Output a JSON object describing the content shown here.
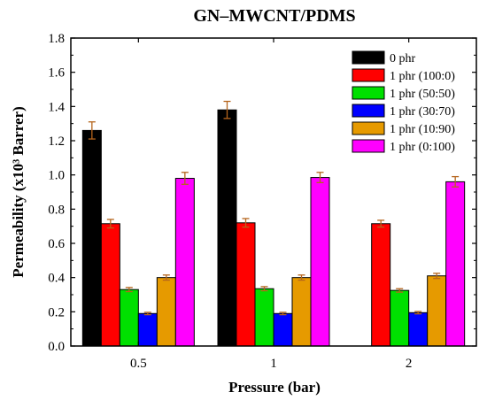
{
  "chart_data": {
    "type": "bar",
    "title": "GN–MWCNT/PDMS",
    "xlabel": "Pressure (bar)",
    "ylabel": "Permeability (x10³ Barrer)",
    "categories": [
      "0.5",
      "1",
      "2"
    ],
    "ylim": [
      0,
      1.8
    ],
    "yticks": [
      "0.0",
      "0.2",
      "0.4",
      "0.6",
      "0.8",
      "1.0",
      "1.2",
      "1.4",
      "1.6",
      "1.8"
    ],
    "legend_position": "top-right",
    "grid": false,
    "series": [
      {
        "name": "0 phr",
        "color": "#000000",
        "values": [
          1.26,
          1.38,
          null
        ],
        "errors": [
          0.05,
          0.05,
          null
        ]
      },
      {
        "name": "1 phr (100:0)",
        "color": "#ff0000",
        "values": [
          0.715,
          0.72,
          0.715
        ],
        "errors": [
          0.025,
          0.025,
          0.02
        ]
      },
      {
        "name": "1 phr (50:50)",
        "color": "#00e000",
        "values": [
          0.33,
          0.335,
          0.325
        ],
        "errors": [
          0.012,
          0.012,
          0.01
        ]
      },
      {
        "name": "1 phr (30:70)",
        "color": "#0000ff",
        "values": [
          0.19,
          0.19,
          0.195
        ],
        "errors": [
          0.007,
          0.007,
          0.007
        ]
      },
      {
        "name": "1 phr (10:90)",
        "color": "#e69a00",
        "values": [
          0.4,
          0.4,
          0.41
        ],
        "errors": [
          0.015,
          0.015,
          0.015
        ]
      },
      {
        "name": "1 phr (0:100)",
        "color": "#ff00ff",
        "values": [
          0.98,
          0.985,
          0.96
        ],
        "errors": [
          0.035,
          0.03,
          0.03
        ]
      }
    ]
  }
}
